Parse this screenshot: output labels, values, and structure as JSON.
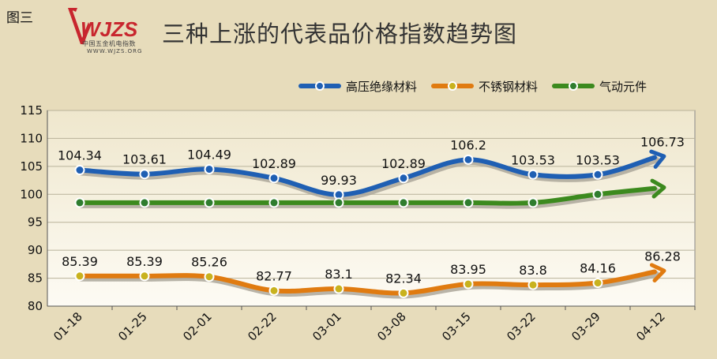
{
  "header": {
    "figure_label": "图三",
    "logo_text": "WJZS",
    "logo_subtitle": "中国五金机电指数",
    "logo_url": "WWW.WJZS.ORG",
    "title": "三种上涨的代表品价格指数趋势图"
  },
  "colors": {
    "background": "#e7dcbb",
    "plot_top": "#efe7cd",
    "plot_bottom": "#fdfbf4",
    "blue": "#1f5fb3",
    "orange": "#e07b10",
    "green": "#3c8a1e",
    "marker_blue": "#1f5fb3",
    "marker_orange": "#c8b21e",
    "marker_green": "#2f7d2f",
    "logo_red": "#c8262e"
  },
  "chart_data": {
    "type": "line",
    "categories": [
      "01-18",
      "01-25",
      "02-01",
      "02-22",
      "03-01",
      "03-08",
      "03-15",
      "03-22",
      "03-29",
      "04-12"
    ],
    "ylim": [
      80,
      115
    ],
    "yticks": [
      80,
      85,
      90,
      95,
      100,
      105,
      110,
      115
    ],
    "grid": true,
    "legend_position": "top-right",
    "series": [
      {
        "name": "高压绝缘材料",
        "values": [
          104.34,
          103.61,
          104.49,
          102.89,
          99.93,
          102.89,
          106.2,
          103.53,
          103.53,
          106.73
        ],
        "labels": [
          "104.34",
          "103.61",
          "104.49",
          "102.89",
          "99.93",
          "102.89",
          "106.2",
          "103.53",
          "103.53",
          "106.73"
        ]
      },
      {
        "name": "不锈钢材料",
        "values": [
          85.39,
          85.39,
          85.26,
          82.77,
          83.1,
          82.34,
          83.95,
          83.8,
          84.16,
          86.28
        ],
        "labels": [
          "85.39",
          "85.39",
          "85.26",
          "82.77",
          "83.1",
          "82.34",
          "83.95",
          "83.8",
          "84.16",
          "86.28"
        ]
      },
      {
        "name": "气动元件",
        "values": [
          98.5,
          98.5,
          98.5,
          98.5,
          98.5,
          98.5,
          98.5,
          98.5,
          100,
          101.2
        ],
        "labels": []
      }
    ]
  }
}
